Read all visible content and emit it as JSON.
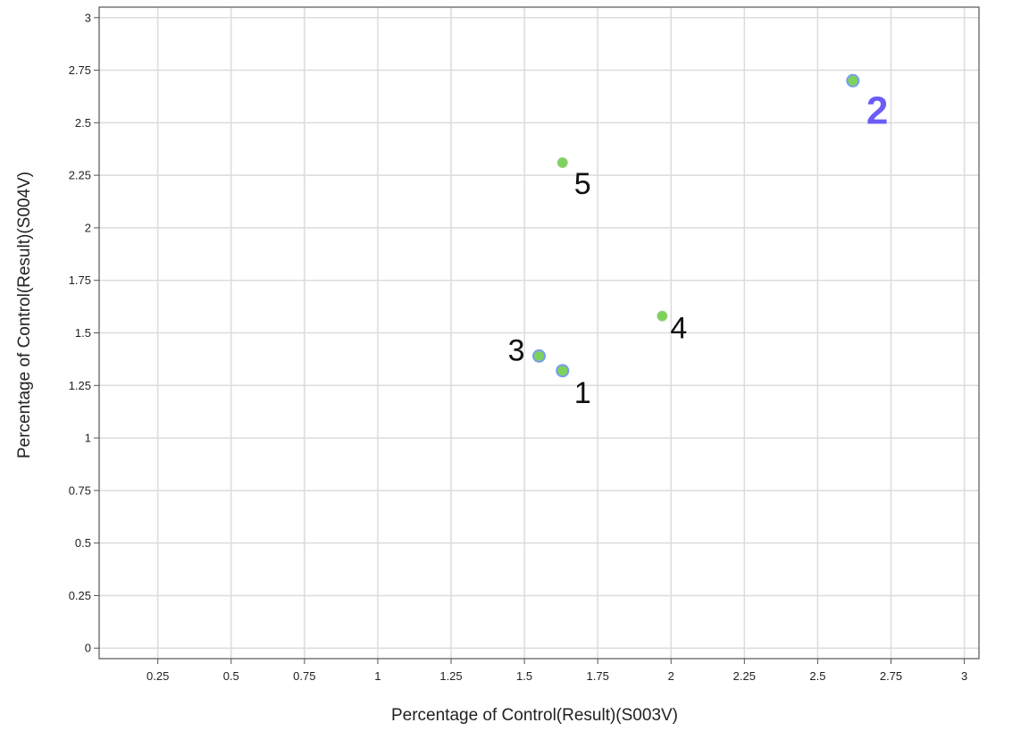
{
  "chart_data": {
    "type": "scatter",
    "title": "",
    "xlabel": "Percentage of Control(Result)(S003V)",
    "ylabel": "Percentage of Control(Result)(S004V)",
    "xlim": [
      0.05,
      3.05
    ],
    "ylim": [
      -0.05,
      3.05
    ],
    "x_ticks": [
      "0.25",
      "0.5",
      "0.75",
      "1",
      "1.25",
      "1.5",
      "1.75",
      "2",
      "2.25",
      "2.5",
      "2.75",
      "3"
    ],
    "y_ticks": [
      "0",
      "0.25",
      "0.5",
      "0.75",
      "1",
      "1.25",
      "1.5",
      "1.75",
      "2",
      "2.25",
      "2.5",
      "2.75",
      "3"
    ],
    "grid": true,
    "legend": "none",
    "points": [
      {
        "label": "1",
        "x": 1.63,
        "y": 1.32,
        "selected": true,
        "highlight": false
      },
      {
        "label": "2",
        "x": 2.62,
        "y": 2.7,
        "selected": true,
        "highlight": true
      },
      {
        "label": "3",
        "x": 1.55,
        "y": 1.39,
        "selected": true,
        "highlight": false
      },
      {
        "label": "4",
        "x": 1.97,
        "y": 1.58,
        "selected": false,
        "highlight": false
      },
      {
        "label": "5",
        "x": 1.63,
        "y": 2.31,
        "selected": false,
        "highlight": false
      }
    ],
    "colors": {
      "point_fill": "#7dd35a",
      "point_selected_ring": "#7a9cf0",
      "highlight_label": "#6b5cf6",
      "grid": "#dcdce0",
      "frame": "#555555"
    }
  }
}
